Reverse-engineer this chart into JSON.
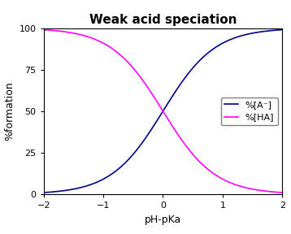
{
  "title": "Weak acid speciation",
  "xlabel": "pH-pKa",
  "ylabel": "%formation",
  "xlim": [
    -2,
    2
  ],
  "ylim": [
    0,
    100
  ],
  "xticks": [
    -2,
    -1,
    0,
    1,
    2
  ],
  "yticks": [
    0,
    25,
    50,
    75,
    100
  ],
  "line_A_color": "#00008B",
  "line_HA_color": "#FF00FF",
  "line_width": 1.2,
  "legend_A": "%[A⁻]",
  "legend_HA": "%[HA]",
  "background_color": "#ffffff",
  "title_fontsize": 11,
  "label_fontsize": 9,
  "tick_fontsize": 8,
  "legend_fontsize": 8
}
